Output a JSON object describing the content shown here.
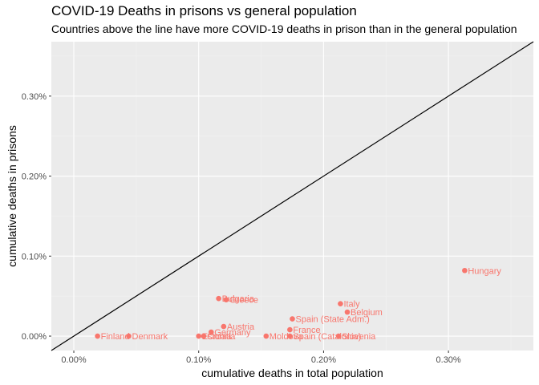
{
  "chart_data": {
    "type": "scatter",
    "title": "COVID-19 Deaths in prisons vs general population",
    "subtitle": "Countries above the line have more COVID-19 deaths in prison than in the general population",
    "xlabel": "cumulative deaths in total population",
    "ylabel": "cumulative deaths in prisons",
    "xlim": [
      -0.00018,
      0.00368
    ],
    "ylim": [
      -0.00018,
      0.00368
    ],
    "x_ticks": [
      0,
      0.001,
      0.002,
      0.003
    ],
    "x_tick_labels": [
      "0.00%",
      "0.10%",
      "0.20%",
      "0.30%"
    ],
    "y_ticks": [
      0,
      0.001,
      0.002,
      0.003
    ],
    "y_tick_labels": [
      "0.00%",
      "0.10%",
      "0.20%",
      "0.30%"
    ],
    "reference_line": "y = x",
    "grid": true,
    "point_color": "#F8766D",
    "panel_color": "#EBEBEB",
    "points": [
      {
        "label": "Hungary",
        "x": 0.00313,
        "y": 0.00082
      },
      {
        "label": "Italy",
        "x": 0.002135,
        "y": 0.000405
      },
      {
        "label": "Belgium",
        "x": 0.00219,
        "y": 0.0003
      },
      {
        "label": "Spain (State Adm.)",
        "x": 0.00175,
        "y": 0.000215
      },
      {
        "label": "France",
        "x": 0.00173,
        "y": 8e-05
      },
      {
        "label": "Spain (Catalonia)",
        "x": 0.00173,
        "y": 0.0
      },
      {
        "label": "Slovenia",
        "x": 0.00212,
        "y": 0.0
      },
      {
        "label": "Moldova",
        "x": 0.00154,
        "y": 0.0
      },
      {
        "label": "Bulgaria",
        "x": 0.00116,
        "y": 0.00047
      },
      {
        "label": "Greece",
        "x": 0.00122,
        "y": 0.000455
      },
      {
        "label": "Austria",
        "x": 0.0012,
        "y": 0.00012
      },
      {
        "label": "Germany",
        "x": 0.0011,
        "y": 5e-05
      },
      {
        "label": "Estonia",
        "x": 0.001,
        "y": 0.0
      },
      {
        "label": "Croatia",
        "x": 0.00104,
        "y": 0.0
      },
      {
        "label": "Finland",
        "x": 0.00019,
        "y": 0.0
      },
      {
        "label": "Denmark",
        "x": 0.00044,
        "y": 0.0
      }
    ]
  }
}
